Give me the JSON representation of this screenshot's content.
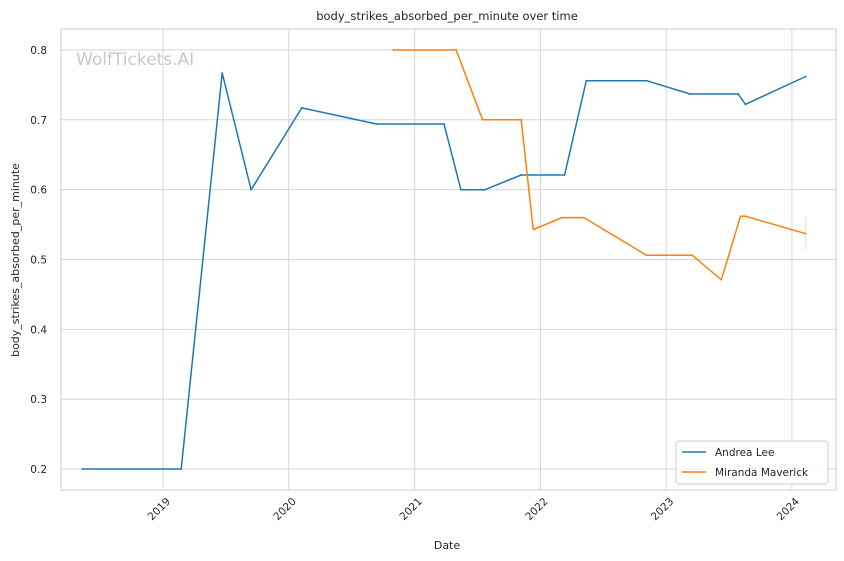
{
  "chart_data": {
    "type": "line",
    "title": "body_strikes_absorbed_per_minute over time",
    "xlabel": "Date",
    "ylabel": "body_strikes_absorbed_per_minute",
    "watermark": "WolfTickets.AI",
    "x_ticks": [
      "2019",
      "2020",
      "2021",
      "2022",
      "2023",
      "2024"
    ],
    "y_ticks": [
      "0.2",
      "0.3",
      "0.4",
      "0.5",
      "0.6",
      "0.7",
      "0.8"
    ],
    "xlim": [
      "2018-03-11",
      "2024-05-08"
    ],
    "ylim": [
      0.17,
      0.83
    ],
    "grid": true,
    "legend_position": "lower-right",
    "series": [
      {
        "name": "Andrea Lee",
        "color": "#1f77b4",
        "points": [
          [
            "2018-05-12",
            0.2
          ],
          [
            "2019-02-23",
            0.2
          ],
          [
            "2019-06-22",
            0.767
          ],
          [
            "2019-09-14",
            0.6
          ],
          [
            "2020-02-08",
            0.717
          ],
          [
            "2020-09-12",
            0.694
          ],
          [
            "2021-03-27",
            0.694
          ],
          [
            "2021-05-15",
            0.6
          ],
          [
            "2021-07-24",
            0.6
          ],
          [
            "2021-11-06",
            0.621
          ],
          [
            "2022-03-12",
            0.621
          ],
          [
            "2022-05-14",
            0.756
          ],
          [
            "2022-11-05",
            0.756
          ],
          [
            "2023-03-11",
            0.737
          ],
          [
            "2023-07-29",
            0.737
          ],
          [
            "2023-08-19",
            0.722
          ],
          [
            "2024-02-10",
            0.762
          ]
        ]
      },
      {
        "name": "Miranda Maverick",
        "color": "#ff7f0e",
        "points": [
          [
            "2020-10-31",
            0.8
          ],
          [
            "2021-05-01",
            0.8
          ],
          [
            "2021-07-17",
            0.7
          ],
          [
            "2021-11-06",
            0.7
          ],
          [
            "2021-12-11",
            0.543
          ],
          [
            "2022-03-05",
            0.56
          ],
          [
            "2022-05-07",
            0.56
          ],
          [
            "2022-11-05",
            0.506
          ],
          [
            "2023-03-18",
            0.506
          ],
          [
            "2023-06-10",
            0.471
          ],
          [
            "2023-08-05",
            0.562
          ],
          [
            "2023-08-19",
            0.562
          ],
          [
            "2024-02-10",
            0.537
          ]
        ]
      }
    ]
  }
}
